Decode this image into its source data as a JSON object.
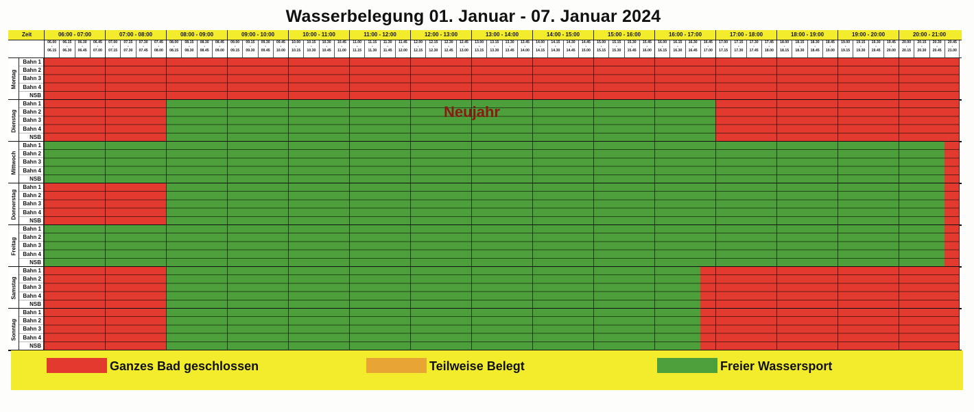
{
  "title": "Wasserbelegung 01. Januar - 07. Januar 2024",
  "zeit_label": "Zeit",
  "hours": [
    "06:00 - 07:00",
    "07:00 - 08:00",
    "08:00 - 09:00",
    "09:00 - 10:00",
    "10:00 - 11:00",
    "11:00 - 12:00",
    "12:00 - 13:00",
    "13:00 - 14:00",
    "14:00 - 15:00",
    "15:00 - 16:00",
    "16:00 - 17:00",
    "17:00 - 18:00",
    "18:00 - 19:00",
    "19:00 - 20:00",
    "20:00 - 21:00"
  ],
  "slots": [
    {
      "from": "06.00",
      "to": "06.15"
    },
    {
      "from": "06.15",
      "to": "06.30"
    },
    {
      "from": "06.30",
      "to": "06.45"
    },
    {
      "from": "06.45",
      "to": "07.00"
    },
    {
      "from": "07.00",
      "to": "07.15"
    },
    {
      "from": "07.15",
      "to": "07.30"
    },
    {
      "from": "07.30",
      "to": "07.45"
    },
    {
      "from": "07.45",
      "to": "08.00"
    },
    {
      "from": "08.00",
      "to": "08.15"
    },
    {
      "from": "08.15",
      "to": "08.30"
    },
    {
      "from": "08.30",
      "to": "08.45"
    },
    {
      "from": "08.45",
      "to": "09.00"
    },
    {
      "from": "09.00",
      "to": "09.15"
    },
    {
      "from": "09.15",
      "to": "09.30"
    },
    {
      "from": "09.30",
      "to": "09.45"
    },
    {
      "from": "09.45",
      "to": "10.00"
    },
    {
      "from": "10.00",
      "to": "10.15"
    },
    {
      "from": "10.15",
      "to": "10.30"
    },
    {
      "from": "10.30",
      "to": "10.45"
    },
    {
      "from": "10.45",
      "to": "11.00"
    },
    {
      "from": "11.00",
      "to": "11.15"
    },
    {
      "from": "11.15",
      "to": "11.30"
    },
    {
      "from": "11.30",
      "to": "11.45"
    },
    {
      "from": "11.45",
      "to": "12.00"
    },
    {
      "from": "12.00",
      "to": "12.15"
    },
    {
      "from": "12.15",
      "to": "12.30"
    },
    {
      "from": "12.30",
      "to": "12.45"
    },
    {
      "from": "12.45",
      "to": "13.00"
    },
    {
      "from": "13.00",
      "to": "13.15"
    },
    {
      "from": "13.15",
      "to": "13.30"
    },
    {
      "from": "13.30",
      "to": "13.45"
    },
    {
      "from": "13.45",
      "to": "14.00"
    },
    {
      "from": "14.00",
      "to": "14.15"
    },
    {
      "from": "14.15",
      "to": "14.30"
    },
    {
      "from": "14.30",
      "to": "14.45"
    },
    {
      "from": "14.45",
      "to": "15.00"
    },
    {
      "from": "15.00",
      "to": "15.15"
    },
    {
      "from": "15.15",
      "to": "15.30"
    },
    {
      "from": "15.30",
      "to": "15.45"
    },
    {
      "from": "15.45",
      "to": "16.00"
    },
    {
      "from": "16.00",
      "to": "16.15"
    },
    {
      "from": "16.15",
      "to": "16.30"
    },
    {
      "from": "16.30",
      "to": "16.45"
    },
    {
      "from": "16.45",
      "to": "17.00"
    },
    {
      "from": "17.00",
      "to": "17.15"
    },
    {
      "from": "17.15",
      "to": "17.30"
    },
    {
      "from": "17.30",
      "to": "17.45"
    },
    {
      "from": "17.45",
      "to": "18.00"
    },
    {
      "from": "18.00",
      "to": "18.15"
    },
    {
      "from": "18.15",
      "to": "18.30"
    },
    {
      "from": "18.30",
      "to": "18.45"
    },
    {
      "from": "18.45",
      "to": "19.00"
    },
    {
      "from": "19.00",
      "to": "19.15"
    },
    {
      "from": "19.15",
      "to": "19.30"
    },
    {
      "from": "19.30",
      "to": "19.45"
    },
    {
      "from": "19.45",
      "to": "20.00"
    },
    {
      "from": "20.00",
      "to": "20.15"
    },
    {
      "from": "20.15",
      "to": "20.30"
    },
    {
      "from": "20.30",
      "to": "20.45"
    },
    {
      "from": "20.45",
      "to": "21.00"
    }
  ],
  "lanes": [
    "Bahn 1",
    "Bahn 2",
    "Bahn 3",
    "Bahn 4",
    "NSB"
  ],
  "days": [
    {
      "name": "Montag",
      "bands": [
        {
          "from": "06:00",
          "to": "21:00",
          "status": "closed"
        }
      ]
    },
    {
      "name": "Dienstag",
      "bands": [
        {
          "from": "06:00",
          "to": "08:00",
          "status": "closed"
        },
        {
          "from": "08:00",
          "to": "17:00",
          "status": "free"
        },
        {
          "from": "17:00",
          "to": "21:00",
          "status": "closed"
        }
      ]
    },
    {
      "name": "Mittwoch",
      "bands": [
        {
          "from": "06:00",
          "to": "20:45",
          "status": "free"
        },
        {
          "from": "20:45",
          "to": "21:00",
          "status": "closed"
        }
      ]
    },
    {
      "name": "Donnerstag",
      "bands": [
        {
          "from": "06:00",
          "to": "08:00",
          "status": "closed"
        },
        {
          "from": "08:00",
          "to": "20:45",
          "status": "free"
        },
        {
          "from": "20:45",
          "to": "21:00",
          "status": "closed"
        }
      ]
    },
    {
      "name": "Freitag",
      "bands": [
        {
          "from": "06:00",
          "to": "20:45",
          "status": "free"
        },
        {
          "from": "20:45",
          "to": "21:00",
          "status": "closed"
        }
      ]
    },
    {
      "name": "Samstag",
      "bands": [
        {
          "from": "06:00",
          "to": "08:00",
          "status": "closed"
        },
        {
          "from": "08:00",
          "to": "16:45",
          "status": "free"
        },
        {
          "from": "16:45",
          "to": "21:00",
          "status": "closed"
        }
      ]
    },
    {
      "name": "Sonntag",
      "bands": [
        {
          "from": "06:00",
          "to": "08:00",
          "status": "closed"
        },
        {
          "from": "08:00",
          "to": "16:45",
          "status": "free"
        },
        {
          "from": "16:45",
          "to": "21:00",
          "status": "closed"
        }
      ]
    }
  ],
  "holiday_label": "Neujahr",
  "legend": [
    {
      "label": "Ganzes Bad geschlossen",
      "color": "#e23a2e"
    },
    {
      "label": "Teilweise Belegt",
      "color": "#e8a534"
    },
    {
      "label": "Freier Wassersport",
      "color": "#4c9f3a"
    }
  ],
  "colors": {
    "closed": "#e23a2e",
    "partial": "#e8a534",
    "free": "#4c9f3a"
  }
}
